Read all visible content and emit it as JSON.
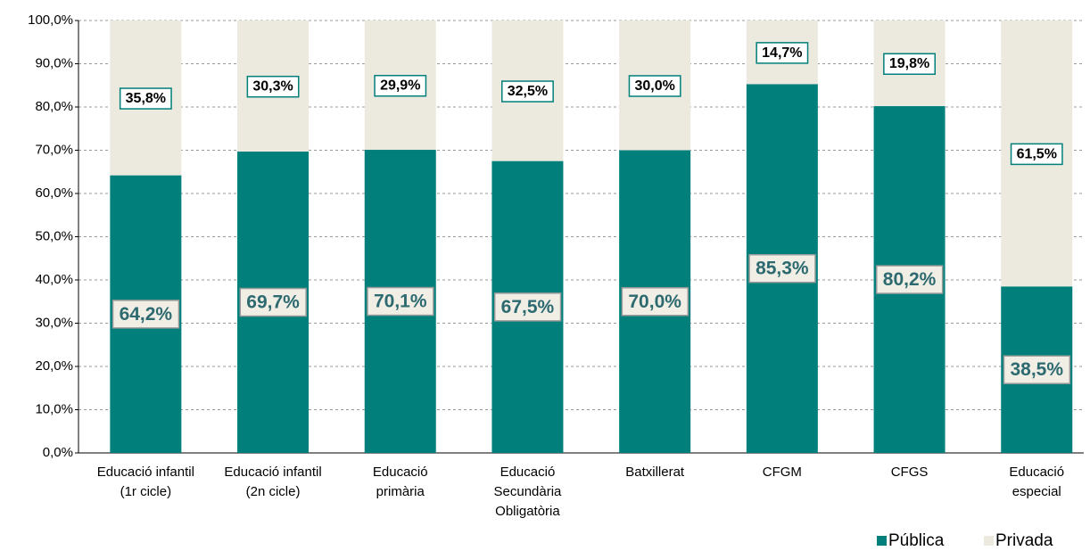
{
  "chart_data": {
    "type": "stacked_bar",
    "categories": [
      [
        "Educació infantil",
        "(1r cicle)"
      ],
      [
        "Educació infantil",
        "(2n cicle)"
      ],
      [
        "Educació",
        "primària"
      ],
      [
        "Educació",
        "Secundària",
        "Obligatòria"
      ],
      [
        "Batxillerat"
      ],
      [
        "CFGM"
      ],
      [
        "CFGS"
      ],
      [
        "Educació",
        "especial"
      ]
    ],
    "series": [
      {
        "name": "Pública",
        "color": "#007f7b",
        "values": [
          64.2,
          69.7,
          70.1,
          67.5,
          70.0,
          85.3,
          80.2,
          38.5
        ],
        "value_labels": [
          "64,2%",
          "69,7%",
          "70,1%",
          "67,5%",
          "70,0%",
          "85,3%",
          "80,2%",
          "38,5%"
        ]
      },
      {
        "name": "Privada",
        "color": "#ece9df",
        "values": [
          35.8,
          30.3,
          29.9,
          32.5,
          30.0,
          14.7,
          19.8,
          61.5
        ],
        "value_labels": [
          "35,8%",
          "30,3%",
          "29,9%",
          "32,5%",
          "30,0%",
          "14,7%",
          "19,8%",
          "61,5%"
        ]
      }
    ],
    "ylim": [
      0,
      100
    ],
    "yticks": [
      {
        "value": 0,
        "label": "0,0%"
      },
      {
        "value": 10,
        "label": "10,0%"
      },
      {
        "value": 20,
        "label": "20,0%"
      },
      {
        "value": 30,
        "label": "30,0%"
      },
      {
        "value": 40,
        "label": "40,0%"
      },
      {
        "value": 50,
        "label": "50,0%"
      },
      {
        "value": 60,
        "label": "60,0%"
      },
      {
        "value": 70,
        "label": "70,0%"
      },
      {
        "value": 80,
        "label": "80,0%"
      },
      {
        "value": 90,
        "label": "90,0%"
      },
      {
        "value": 100,
        "label": "100,0%"
      }
    ],
    "grid": true,
    "legend": "bottom-right"
  }
}
